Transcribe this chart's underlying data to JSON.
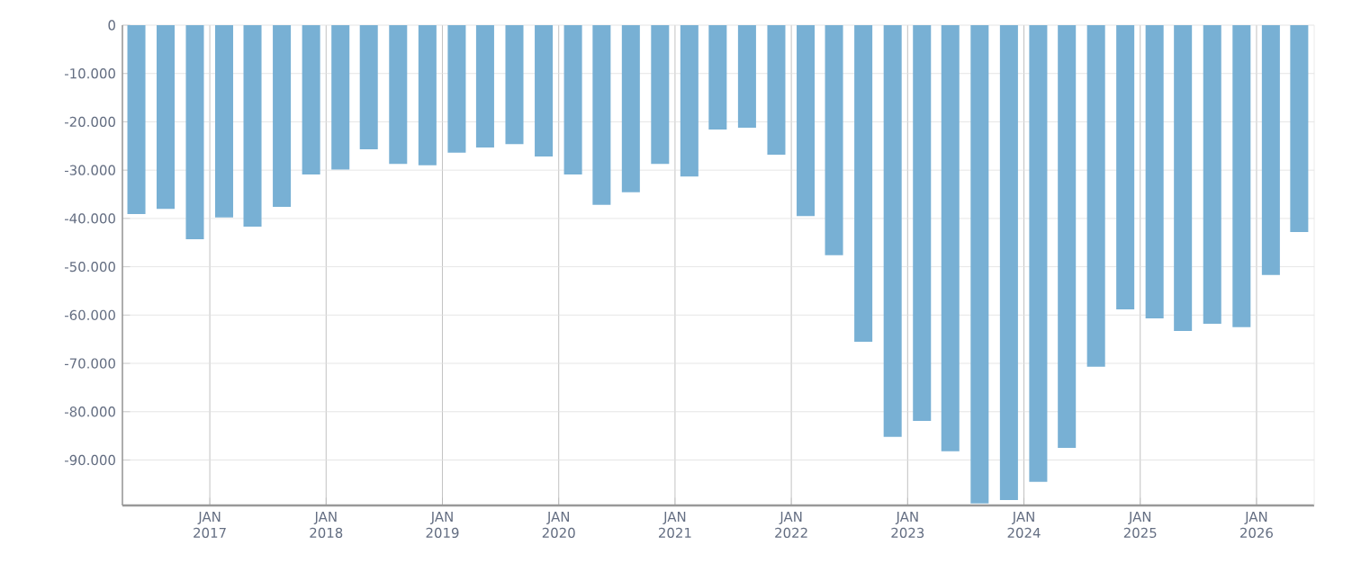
{
  "chart_data": {
    "type": "bar",
    "color": "#78b0d4",
    "grid": true,
    "x": [
      "2016-05-15",
      "2016-08-15",
      "2016-11-15",
      "2017-02-15",
      "2017-05-15",
      "2017-08-15",
      "2017-11-15",
      "2018-02-15",
      "2018-05-15",
      "2018-08-15",
      "2018-11-15",
      "2019-02-15",
      "2019-05-15",
      "2019-08-15",
      "2019-11-15",
      "2020-02-15",
      "2020-05-15",
      "2020-08-15",
      "2020-11-15",
      "2021-02-15",
      "2021-05-15",
      "2021-08-15",
      "2021-11-15",
      "2022-02-15",
      "2022-05-15",
      "2022-08-15",
      "2022-11-15",
      "2023-02-15",
      "2023-05-15",
      "2023-08-15",
      "2023-11-15",
      "2024-02-15",
      "2024-05-15",
      "2024-08-15",
      "2024-11-15",
      "2025-02-15",
      "2025-05-15",
      "2025-08-15",
      "2025-11-15",
      "2026-02-15",
      "2026-05-15"
    ],
    "values": [
      -39100,
      -38000,
      -44300,
      -39800,
      -41700,
      -37600,
      -30900,
      -29900,
      -25700,
      -28700,
      -29000,
      -26400,
      -25300,
      -24600,
      -27200,
      -30900,
      -37200,
      -34600,
      -28700,
      -31300,
      -21600,
      -21200,
      -26800,
      -39500,
      -47600,
      -65500,
      -85200,
      -81900,
      -88200,
      -99000,
      -98300,
      -94500,
      -87500,
      -70700,
      -58800,
      -60700,
      -63300,
      -61800,
      -62500,
      -51700,
      -42800
    ],
    "xlim": [
      "2016-04-01",
      "2026-07-01"
    ],
    "xticks": [
      {
        "value": "2017-01-01",
        "label": "JAN 2017"
      },
      {
        "value": "2018-01-01",
        "label": "JAN 2018"
      },
      {
        "value": "2019-01-01",
        "label": "JAN 2019"
      },
      {
        "value": "2020-01-01",
        "label": "JAN 2020"
      },
      {
        "value": "2021-01-01",
        "label": "JAN 2021"
      },
      {
        "value": "2022-01-01",
        "label": "JAN 2022"
      },
      {
        "value": "2023-01-01",
        "label": "JAN 2023"
      },
      {
        "value": "2024-01-01",
        "label": "JAN 2024"
      },
      {
        "value": "2025-01-01",
        "label": "JAN 2025"
      },
      {
        "value": "2026-01-01",
        "label": "JAN 2026"
      }
    ],
    "ylim": [
      -99400,
      0
    ],
    "yticks": [
      {
        "value": 0,
        "label": "0"
      },
      {
        "value": -10000,
        "label": "-10.000"
      },
      {
        "value": -20000,
        "label": "-20.000"
      },
      {
        "value": -30000,
        "label": "-30.000"
      },
      {
        "value": -40000,
        "label": "-40.000"
      },
      {
        "value": -50000,
        "label": "-50.000"
      },
      {
        "value": -60000,
        "label": "-60.000"
      },
      {
        "value": -70000,
        "label": "-70.000"
      },
      {
        "value": -80000,
        "label": "-80.000"
      },
      {
        "value": -90000,
        "label": "-90.000"
      }
    ]
  }
}
